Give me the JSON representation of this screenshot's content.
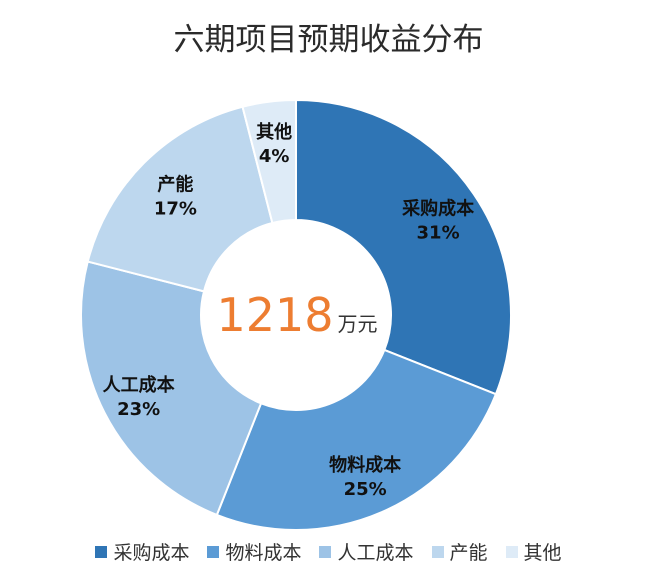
{
  "chart_data": {
    "type": "pie",
    "title": "六期项目预期收益分布",
    "center_label": {
      "value": "1218",
      "unit": "万元"
    },
    "categories": [
      "采购成本",
      "物料成本",
      "人工成本",
      "产能",
      "其他"
    ],
    "values": [
      31,
      25,
      23,
      17,
      4
    ],
    "value_labels": [
      "31%",
      "25%",
      "23%",
      "17%",
      "4%"
    ],
    "colors": [
      "#2f75b5",
      "#5b9bd5",
      "#9dc3e6",
      "#bdd7ee",
      "#deebf7"
    ],
    "legend_position": "bottom"
  }
}
